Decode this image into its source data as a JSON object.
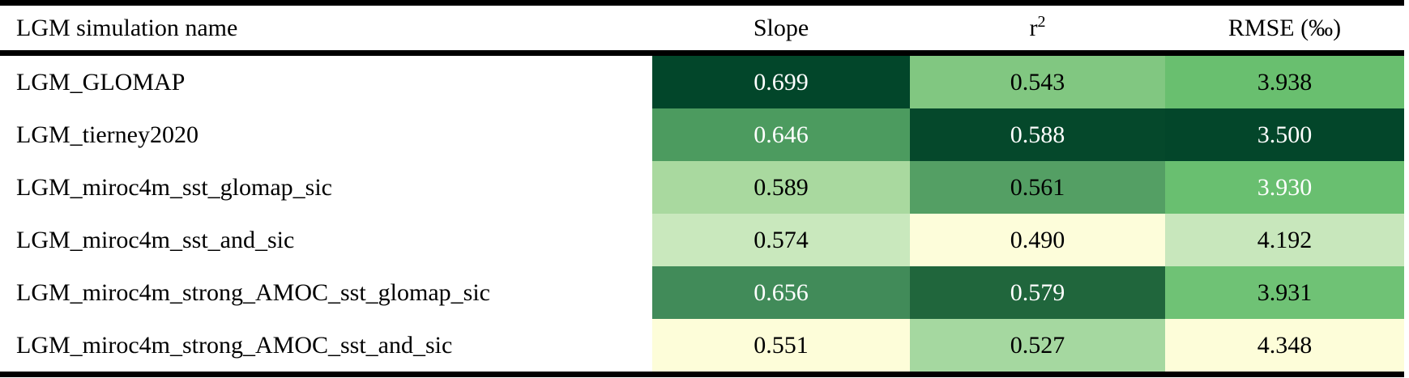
{
  "table": {
    "columns": [
      {
        "label": "LGM simulation name"
      },
      {
        "label": "Slope"
      },
      {
        "label": "r",
        "sup": "2"
      },
      {
        "label": "RMSE (‰)"
      }
    ],
    "rows": [
      {
        "name": "LGM_GLOMAP",
        "slope": {
          "value": "0.699",
          "bg": "#02462a",
          "fg": "#ffffff"
        },
        "r2": {
          "value": "0.543",
          "bg": "#81c781",
          "fg": "#000000"
        },
        "rmse": {
          "value": "3.938",
          "bg": "#69bf6f",
          "fg": "#000000"
        }
      },
      {
        "name": "LGM_tierney2020",
        "slope": {
          "value": "0.646",
          "bg": "#4c9b5f",
          "fg": "#ffffff"
        },
        "r2": {
          "value": "0.588",
          "bg": "#05482b",
          "fg": "#ffffff"
        },
        "rmse": {
          "value": "3.500",
          "bg": "#03462a",
          "fg": "#ffffff"
        }
      },
      {
        "name": "LGM_miroc4m_sst_glomap_sic",
        "slope": {
          "value": "0.589",
          "bg": "#a9d99f",
          "fg": "#000000"
        },
        "r2": {
          "value": "0.561",
          "bg": "#549f64",
          "fg": "#000000"
        },
        "rmse": {
          "value": "3.930",
          "bg": "#69bf70",
          "fg": "#ffffff"
        }
      },
      {
        "name": "LGM_miroc4m_sst_and_sic",
        "slope": {
          "value": "0.574",
          "bg": "#c9e8bd",
          "fg": "#000000"
        },
        "r2": {
          "value": "0.490",
          "bg": "#fdfdda",
          "fg": "#000000"
        },
        "rmse": {
          "value": "4.192",
          "bg": "#c8e7bc",
          "fg": "#000000"
        }
      },
      {
        "name": "LGM_miroc4m_strong_AMOC_sst_glomap_sic",
        "slope": {
          "value": "0.656",
          "bg": "#418b59",
          "fg": "#ffffff"
        },
        "r2": {
          "value": "0.579",
          "bg": "#20663c",
          "fg": "#ffffff"
        },
        "rmse": {
          "value": "3.931",
          "bg": "#6fc275",
          "fg": "#000000"
        }
      },
      {
        "name": "LGM_miroc4m_strong_AMOC_sst_and_sic",
        "slope": {
          "value": "0.551",
          "bg": "#fdfdd9",
          "fg": "#000000"
        },
        "r2": {
          "value": "0.527",
          "bg": "#a5d8a0",
          "fg": "#000000"
        },
        "rmse": {
          "value": "4.348",
          "bg": "#fdfdd9",
          "fg": "#000000"
        }
      }
    ]
  },
  "colors": {
    "border": "#000000",
    "background": "#ffffff",
    "heatmap_low": "#fdfdda",
    "heatmap_high": "#02462a"
  }
}
